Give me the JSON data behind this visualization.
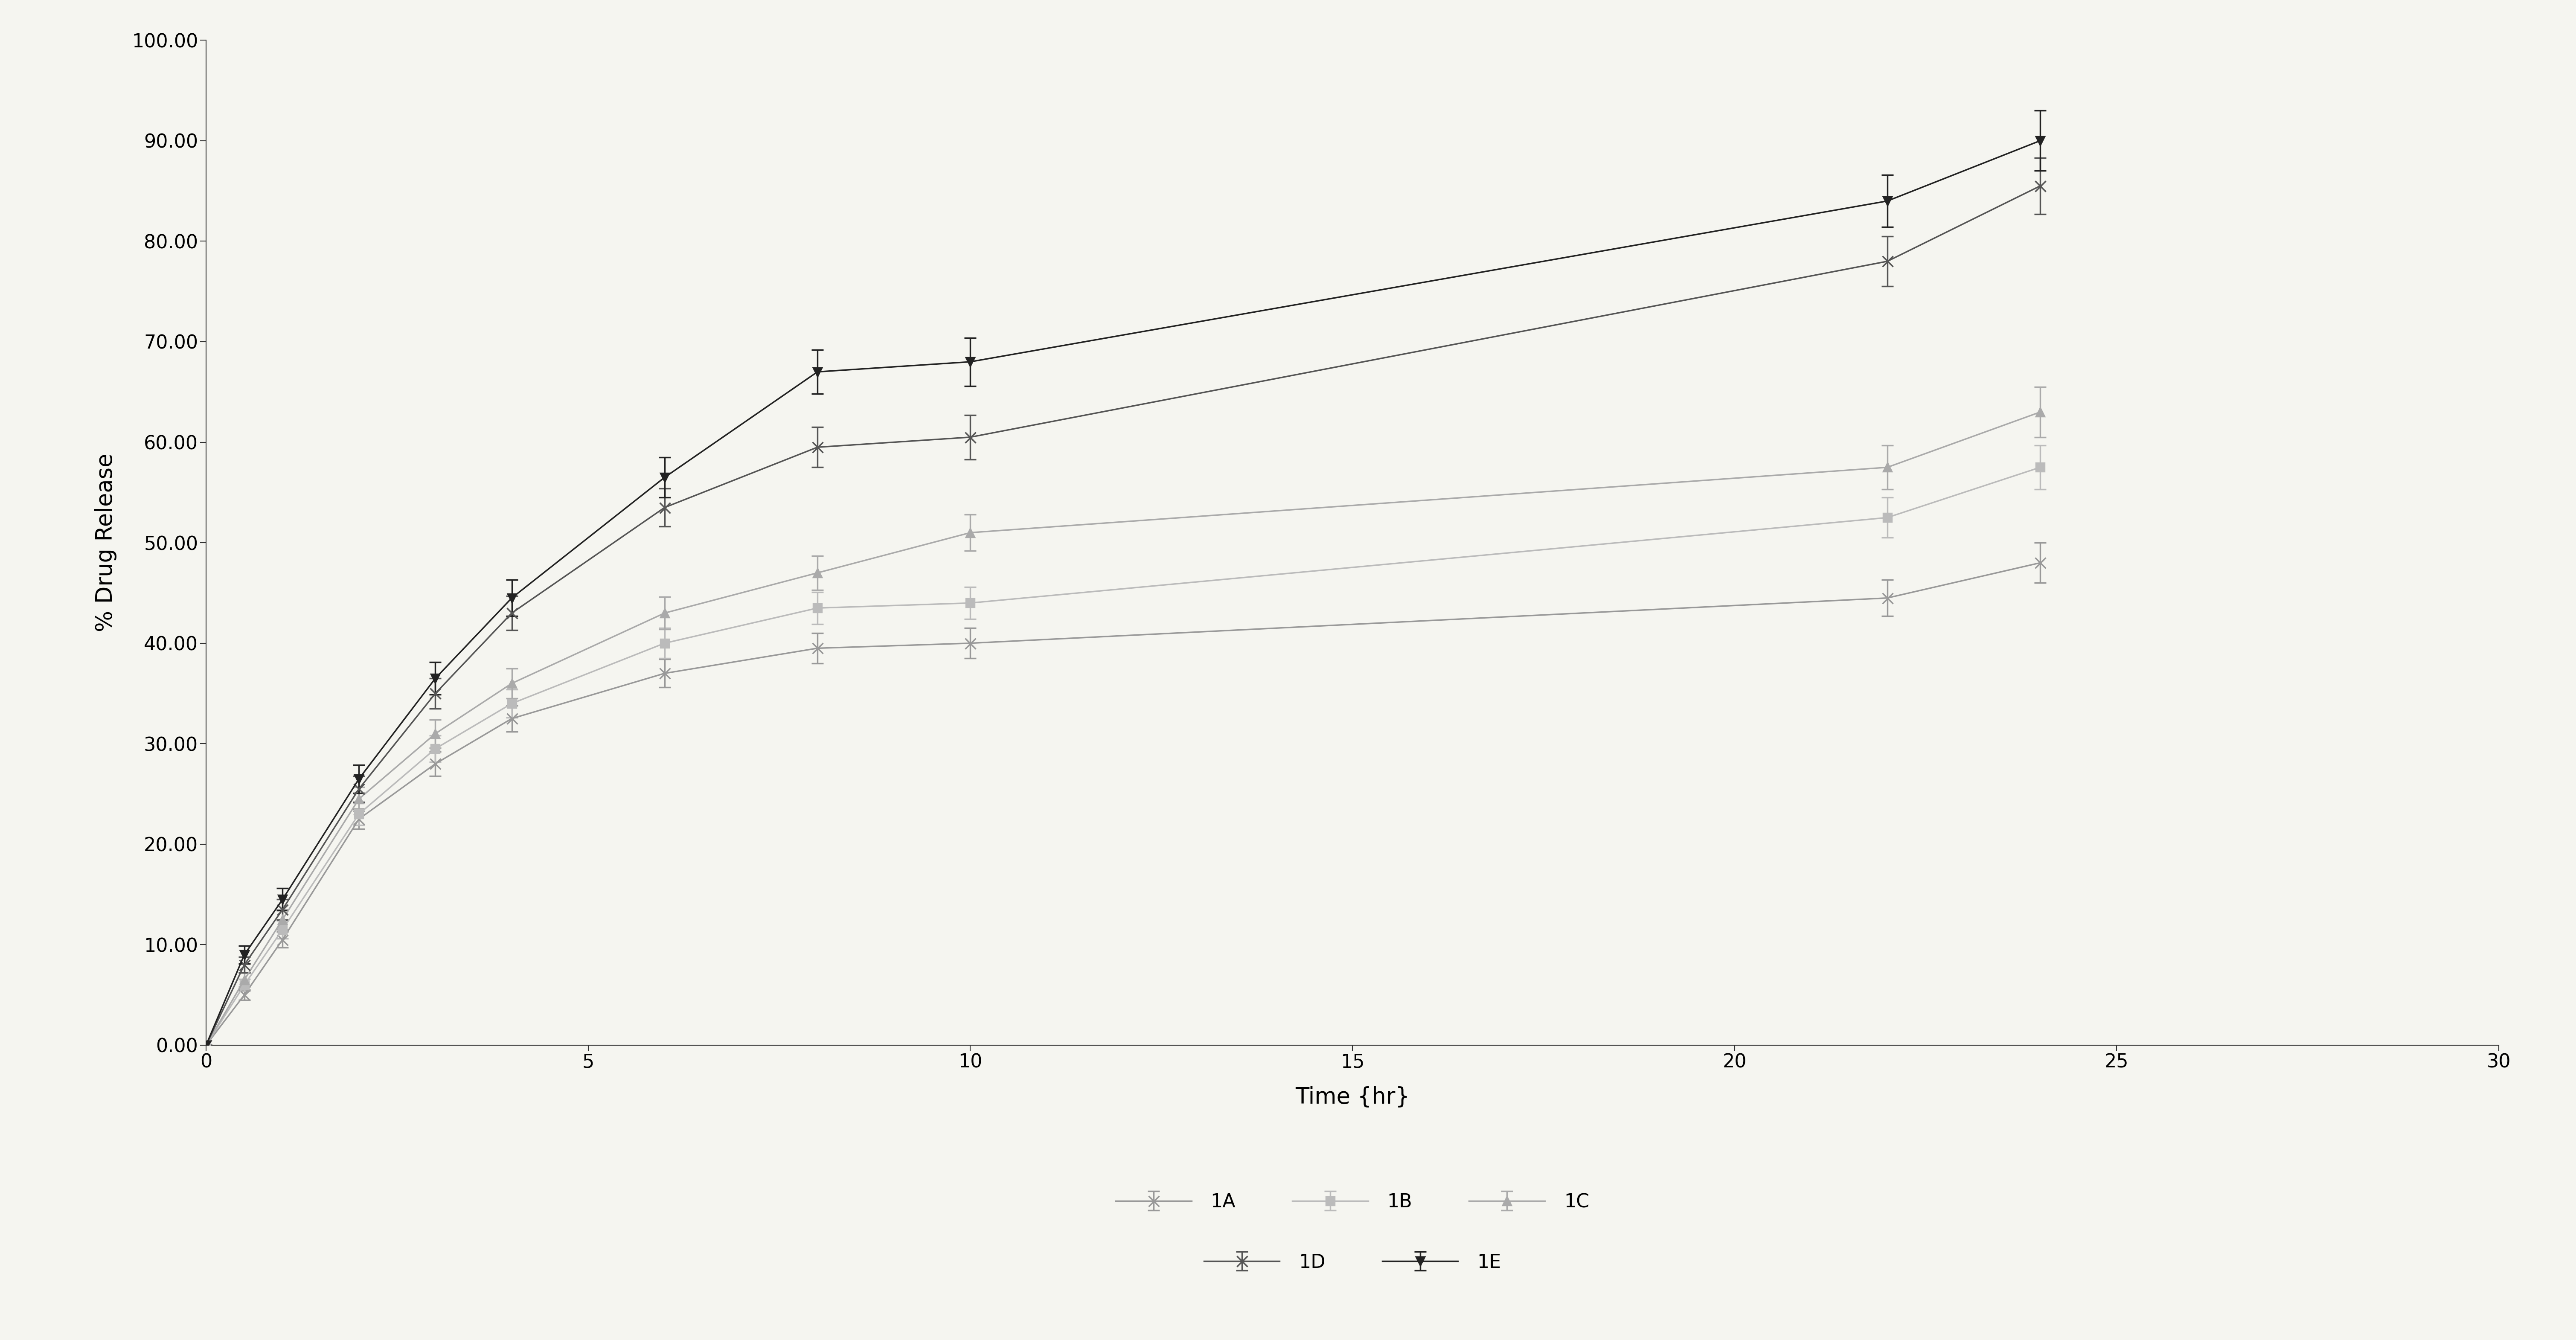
{
  "time": [
    0,
    0.5,
    1,
    2,
    3,
    4,
    6,
    8,
    10,
    22,
    24
  ],
  "series_order": [
    "1A",
    "1B",
    "1C",
    "1D",
    "1E"
  ],
  "series": {
    "1A": {
      "values": [
        0,
        5.0,
        10.5,
        22.5,
        28.0,
        32.5,
        37.0,
        39.5,
        40.0,
        44.5,
        48.0
      ],
      "errors": [
        0,
        0.5,
        0.8,
        1.0,
        1.2,
        1.3,
        1.4,
        1.5,
        1.5,
        1.8,
        2.0
      ],
      "color": "#999999",
      "marker": "x",
      "markersize": 18,
      "linewidth": 2.5
    },
    "1B": {
      "values": [
        0,
        6.0,
        11.5,
        23.0,
        29.5,
        34.0,
        40.0,
        43.5,
        44.0,
        52.5,
        57.5
      ],
      "errors": [
        0,
        0.6,
        0.9,
        1.1,
        1.3,
        1.4,
        1.5,
        1.6,
        1.6,
        2.0,
        2.2
      ],
      "color": "#bbbbbb",
      "marker": "s",
      "markersize": 14,
      "linewidth": 2.5
    },
    "1C": {
      "values": [
        0,
        6.5,
        12.5,
        24.5,
        31.0,
        36.0,
        43.0,
        47.0,
        51.0,
        57.5,
        63.0
      ],
      "errors": [
        0,
        0.7,
        1.0,
        1.2,
        1.4,
        1.5,
        1.6,
        1.7,
        1.8,
        2.2,
        2.5
      ],
      "color": "#aaaaaa",
      "marker": "^",
      "markersize": 14,
      "linewidth": 2.5
    },
    "1D": {
      "values": [
        0,
        8.0,
        13.5,
        25.5,
        35.0,
        43.0,
        53.5,
        59.5,
        60.5,
        78.0,
        85.5
      ],
      "errors": [
        0,
        0.8,
        1.0,
        1.3,
        1.5,
        1.7,
        1.9,
        2.0,
        2.2,
        2.5,
        2.8
      ],
      "color": "#555555",
      "marker": "x",
      "markersize": 18,
      "linewidth": 2.5
    },
    "1E": {
      "values": [
        0,
        9.0,
        14.5,
        26.5,
        36.5,
        44.5,
        56.5,
        67.0,
        68.0,
        84.0,
        90.0
      ],
      "errors": [
        0,
        0.9,
        1.1,
        1.4,
        1.6,
        1.8,
        2.0,
        2.2,
        2.4,
        2.6,
        3.0
      ],
      "color": "#222222",
      "marker": "v",
      "markersize": 14,
      "linewidth": 2.5
    }
  },
  "xlabel": "Time {hr}",
  "ylabel": "% Drug Release",
  "xlim": [
    0,
    30
  ],
  "ylim": [
    0,
    100
  ],
  "xticks": [
    0,
    5,
    10,
    15,
    20,
    25,
    30
  ],
  "yticks": [
    0.0,
    10.0,
    20.0,
    30.0,
    40.0,
    50.0,
    60.0,
    70.0,
    80.0,
    90.0,
    100.0
  ],
  "background_color": "#f5f5f0",
  "plot_bg_color": "#f5f5f0",
  "figsize": [
    60.38,
    31.41
  ],
  "dpi": 100,
  "legend_row1": [
    "1A",
    "1B",
    "1C"
  ],
  "legend_row2": [
    "1D",
    "1E"
  ]
}
